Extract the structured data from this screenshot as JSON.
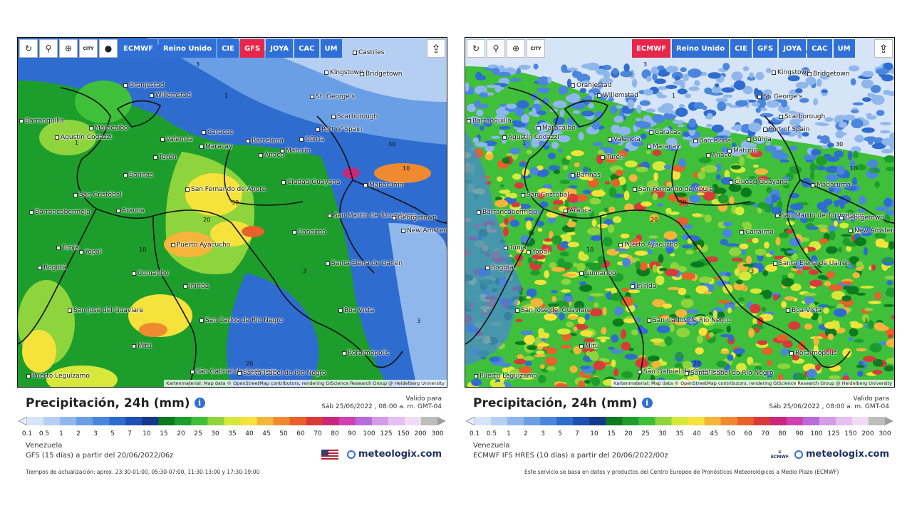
{
  "toolbar_icons": [
    "refresh-icon",
    "location-pin-icon",
    "zoom-icon",
    "city-toggle-icon",
    "dot-icon"
  ],
  "city_label": "CITY",
  "model_buttons": [
    "ECMWF",
    "Reino Unido",
    "CIE",
    "GFS",
    "JOYA",
    "CAC",
    "UM"
  ],
  "cities": [
    "Castries",
    "Kingstown",
    "Bridgetown",
    "Oranjestad",
    "Willemstad",
    "St. George's",
    "Scarborough",
    "Port of Spain",
    "Barranquilla",
    "Maracaibo",
    "Agustín Codazzi",
    "Valencia",
    "Caracas",
    "Maracay",
    "Barcelona",
    "Güiria",
    "Anaco",
    "Maturín",
    "Turén",
    "Barinas",
    "Ciudad Guayana",
    "Mabaruma",
    "San Cristóbal",
    "San Fernando de Apure",
    "Barrancabermeja",
    "Arauca",
    "San Martín de Turumbang",
    "Georgetown",
    "New Amsterdam",
    "Canaima",
    "Tunja",
    "Yopal",
    "Puerto Ayacucho",
    "Bogotá",
    "Cumaribo",
    "Santa Elena de Uairén",
    "Inírida",
    "San José del Guaviare",
    "Boa Vista",
    "San Carlos de Río Negro",
    "Mitú",
    "Roraimópolis",
    "Puerto Leguízamo",
    "São Gabriel da Cachoeira",
    "Santa Isabel do Rio Negro"
  ],
  "attribution": "Kartenmaterial: Map data © OpenStreetMap contributors, rendering GIScience Research Group @ Heidelberg University",
  "legend": {
    "title": "Precipitación, 24h (mm)",
    "valid_label": "Valido para",
    "valid_time": "Sáb 25/06/2022 , 08:00 a. m. GMT-04",
    "ticks": [
      "0.1",
      "0.5",
      "1",
      "2",
      "3",
      "5",
      "7",
      "10",
      "15",
      "20",
      "25",
      "30",
      "35",
      "40",
      "45",
      "50",
      "60",
      "70",
      "80",
      "90",
      "100",
      "125",
      "150",
      "200",
      "300"
    ],
    "colors": [
      "#d6e4f8",
      "#b4cff2",
      "#8fb7ec",
      "#6a9fe6",
      "#4a86dc",
      "#2f6ccf",
      "#1f4fb0",
      "#16388a",
      "#0c7a1e",
      "#1d9e2c",
      "#3fbf3a",
      "#8ed43c",
      "#d8e83a",
      "#f5e23a",
      "#f5b53a",
      "#f08a30",
      "#e8602a",
      "#d83a3a",
      "#c8287a",
      "#d040b0",
      "#b86ad8",
      "#d59ae8",
      "#e6c0f0",
      "#f0dcf5",
      "#bdbdbd"
    ]
  },
  "left": {
    "active_model": "GFS",
    "region": "Venezuela",
    "model_line": "GFS (15 días) a partir del 20/06/2022/06z",
    "brand": "meteologix.com",
    "footnote": "Tiempos de actualización: aprox. 23:30-01:00, 05:30-07:00, 11:30-13:00 y 17:30-19:00",
    "contour_labels": [
      "1",
      "3",
      "10",
      "20",
      "30"
    ]
  },
  "right": {
    "active_model": "ECMWF",
    "region": "Venezuela",
    "model_line": "ECMWF IFS HRES (10 días) a partir del 20/06/2022/00z",
    "brand": "meteologix.com",
    "ecmwf_logo_text": "ECMWF",
    "footnote": "Este servicio se basa en datos y productos del Centro Europeo de Pronósticos Meteorológicos a Medio Plazo (ECMWF)",
    "contour_labels": [
      "1",
      "3",
      "10",
      "20",
      "30"
    ]
  }
}
